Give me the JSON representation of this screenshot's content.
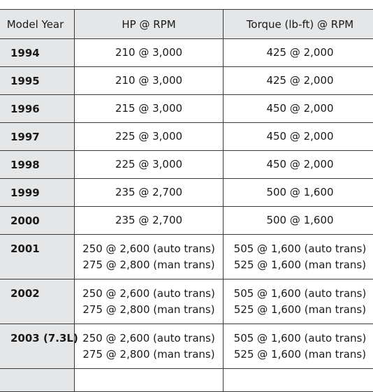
{
  "table": {
    "headers": [
      "Model Year",
      "HP @ RPM",
      "Torque (lb-ft) @ RPM"
    ],
    "rows": [
      {
        "year": "1994",
        "hp": [
          "210 @ 3,000"
        ],
        "torque": [
          "425 @ 2,000"
        ]
      },
      {
        "year": "1995",
        "hp": [
          "210 @ 3,000"
        ],
        "torque": [
          "425 @ 2,000"
        ]
      },
      {
        "year": "1996",
        "hp": [
          "215 @ 3,000"
        ],
        "torque": [
          "450 @ 2,000"
        ]
      },
      {
        "year": "1997",
        "hp": [
          "225 @ 3,000"
        ],
        "torque": [
          "450 @ 2,000"
        ]
      },
      {
        "year": "1998",
        "hp": [
          "225 @ 3,000"
        ],
        "torque": [
          "450 @ 2,000"
        ]
      },
      {
        "year": "1999",
        "hp": [
          "235 @ 2,700"
        ],
        "torque": [
          "500 @ 1,600"
        ]
      },
      {
        "year": "2000",
        "hp": [
          "235 @ 2,700"
        ],
        "torque": [
          "500 @ 1,600"
        ]
      },
      {
        "year": "2001",
        "hp": [
          "250 @ 2,600 (auto trans)",
          "275 @ 2,800 (man trans)"
        ],
        "torque": [
          "505 @ 1,600 (auto trans)",
          "525 @ 1,600 (man trans)"
        ]
      },
      {
        "year": "2002",
        "hp": [
          "250 @ 2,600 (auto trans)",
          "275 @ 2,800 (man trans)"
        ],
        "torque": [
          "505 @ 1,600 (auto trans)",
          "525 @ 1,600 (man trans)"
        ]
      },
      {
        "year": "2003 (7.3L)",
        "hp": [
          "250 @ 2,600 (auto trans)",
          "275 @ 2,800 (man trans)"
        ],
        "torque": [
          "505 @ 1,600 (auto trans)",
          "525 @ 1,600 (man trans)"
        ]
      }
    ]
  }
}
